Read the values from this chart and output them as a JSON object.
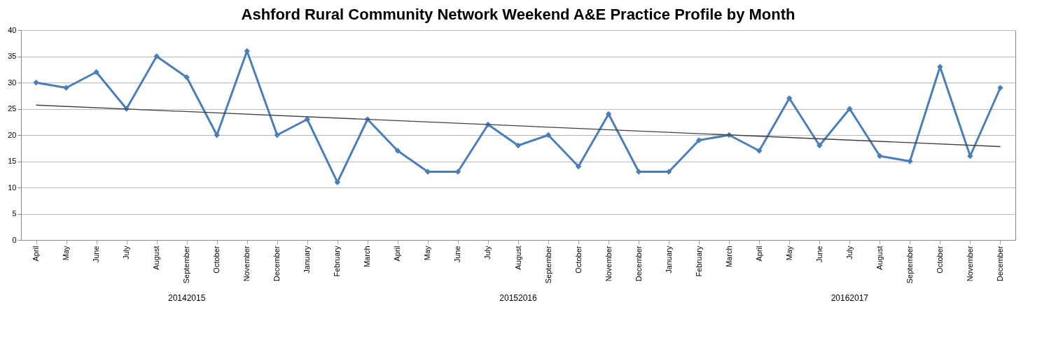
{
  "chart_data": {
    "type": "line",
    "title": "Ashford Rural Community Network Weekend A&E Practice Profile by Month",
    "categories": [
      "April",
      "May",
      "June",
      "July",
      "August",
      "September",
      "October",
      "November",
      "December",
      "January",
      "February",
      "March",
      "April",
      "May",
      "June",
      "July",
      "August",
      "September",
      "October",
      "November",
      "December",
      "January",
      "February",
      "March",
      "April",
      "May",
      "June",
      "July",
      "August",
      "September",
      "October",
      "November",
      "December"
    ],
    "series": [
      {
        "color": "#4a7ebb",
        "marker": "diamond",
        "values": [
          30,
          29,
          32,
          25,
          35,
          31,
          20,
          36,
          20,
          23,
          11,
          23,
          17,
          13,
          13,
          22,
          18,
          20,
          14,
          24,
          13,
          13,
          19,
          20,
          17,
          27,
          18,
          25,
          16,
          15,
          33,
          16,
          29
        ]
      },
      {
        "type": "line",
        "color": "#404040",
        "marker": "none",
        "values": [
          25.7,
          null,
          null,
          null,
          null,
          null,
          null,
          null,
          null,
          null,
          null,
          null,
          null,
          null,
          null,
          null,
          null,
          null,
          null,
          null,
          null,
          null,
          null,
          null,
          null,
          null,
          null,
          null,
          null,
          null,
          null,
          null,
          17.8
        ]
      }
    ],
    "annotations": [
      "20142015",
      "20152016",
      "20162017"
    ],
    "ylim": [
      0,
      40
    ],
    "yticks": [
      0,
      5,
      10,
      15,
      20,
      25,
      30,
      35,
      40
    ],
    "grid": "y"
  }
}
